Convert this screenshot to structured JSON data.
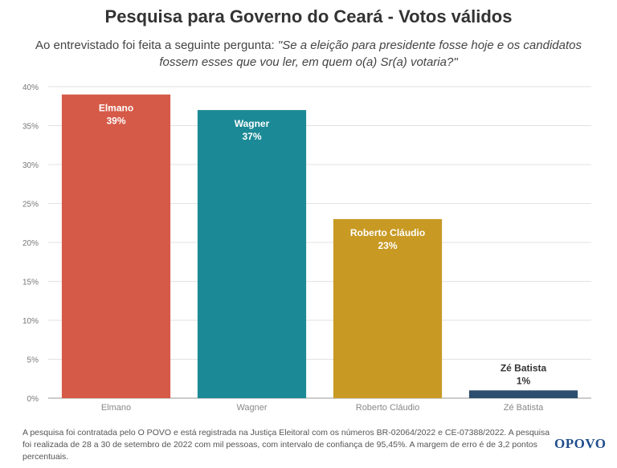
{
  "header": {
    "title": "Pesquisa para Governo do Ceará - Votos válidos",
    "subtitle_prefix": "Ao entrevistado foi feita a seguinte pergunta: ",
    "subtitle_question": "\"Se a eleição para presidente fosse hoje e os candidatos fossem esses que vou ler, em quem o(a) Sr(a) votaria?\""
  },
  "chart_data": {
    "type": "bar",
    "categories": [
      "Elmano",
      "Wagner",
      "Roberto Cláudio",
      "Zé Batista"
    ],
    "values": [
      39,
      37,
      23,
      1
    ],
    "data_labels": [
      "39%",
      "37%",
      "23%",
      "1%"
    ],
    "colors": [
      "#d65a48",
      "#1b8a96",
      "#c89a24",
      "#2d4e6e"
    ],
    "ylim": [
      0,
      40
    ],
    "yticks": [
      0,
      5,
      10,
      15,
      20,
      25,
      30,
      35,
      40
    ],
    "ytick_labels": [
      "0%",
      "5%",
      "10%",
      "15%",
      "20%",
      "25%",
      "30%",
      "35%",
      "40%"
    ],
    "grid": true,
    "xlabel": "",
    "ylabel": ""
  },
  "footer": {
    "note": "A pesquisa foi contratada pelo O POVO e está registrada na Justiça Eleitoral com os números BR-02064/2022 e CE-07388/2022. A pesquisa foi realizada de 28 a 30 de setembro de 2022 com mil pessoas, com intervalo de confiança de 95,45%. A margem de erro é de 3,2 pontos percentuais.",
    "logo": "OPOVO"
  }
}
